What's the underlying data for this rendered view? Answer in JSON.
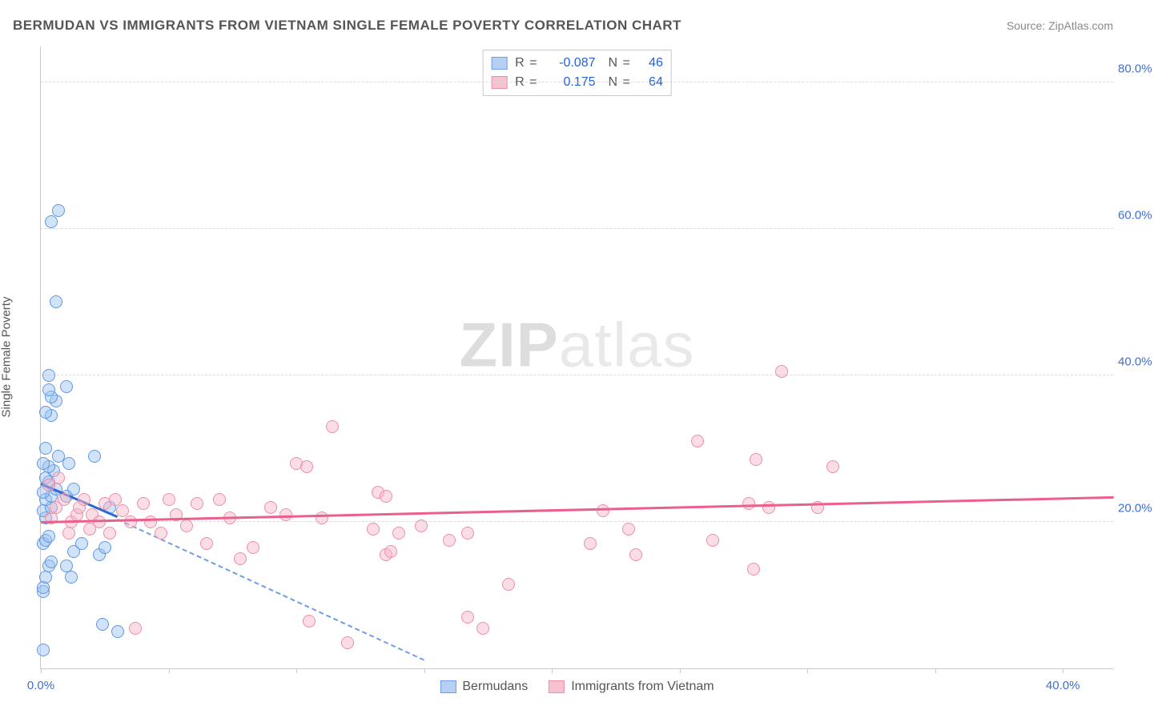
{
  "chart": {
    "type": "scatter",
    "title": "BERMUDAN VS IMMIGRANTS FROM VIETNAM SINGLE FEMALE POVERTY CORRELATION CHART",
    "source_label": "Source: ZipAtlas.com",
    "watermark_a": "ZIP",
    "watermark_b": "atlas",
    "yaxis_label": "Single Female Poverty",
    "background_color": "#ffffff",
    "grid_color": "#dcdcdc",
    "axis_color": "#c9c9c9",
    "tick_label_color": "#3b6fd8",
    "title_color": "#555555",
    "xlim": [
      0,
      42
    ],
    "ylim": [
      0,
      85
    ],
    "yticks": [
      20,
      40,
      60,
      80
    ],
    "ytick_labels": [
      "20.0%",
      "40.0%",
      "60.0%",
      "80.0%"
    ],
    "xticks": [
      0,
      5,
      10,
      15,
      20,
      25,
      30,
      35,
      40
    ],
    "xtick_labels": {
      "0": "0.0%",
      "40": "40.0%"
    },
    "marker_radius": 8,
    "marker_border_width": 1.4,
    "stats_legend": {
      "rows": [
        {
          "swatch_fill": "#b6cff2",
          "swatch_border": "#6b9fe8",
          "r_label": "R =",
          "r_value": "-0.087",
          "n_label": "N =",
          "n_value": "46"
        },
        {
          "swatch_fill": "#f7c2cf",
          "swatch_border": "#ec8fa8",
          "r_label": "R =",
          "r_value": "0.175",
          "n_label": "N =",
          "n_value": "64"
        }
      ]
    },
    "bottom_legend": {
      "items": [
        {
          "swatch_fill": "#b6cff2",
          "swatch_border": "#6b9fe8",
          "label": "Bermudans"
        },
        {
          "swatch_fill": "#f7c2cf",
          "swatch_border": "#ec8fa8",
          "label": "Immigrants from Vietnam"
        }
      ]
    },
    "series": [
      {
        "name": "Bermudans",
        "fill": "rgba(154,193,240,0.45)",
        "stroke": "#5f97e3",
        "trend_solid": {
          "x1": 0,
          "y1": 25,
          "x2": 3.0,
          "y2": 20.5,
          "color": "#2b67d6",
          "width": 3
        },
        "trend_dash": {
          "x1": 3.0,
          "y1": 20.2,
          "x2": 15.0,
          "y2": 1.0,
          "color": "#6e9ee6"
        },
        "points": [
          [
            0.1,
            2.5
          ],
          [
            0.1,
            10.5
          ],
          [
            0.1,
            11.0
          ],
          [
            0.2,
            12.5
          ],
          [
            0.3,
            14.0
          ],
          [
            0.4,
            14.5
          ],
          [
            0.1,
            17.0
          ],
          [
            0.2,
            17.5
          ],
          [
            0.3,
            18.0
          ],
          [
            0.2,
            20.5
          ],
          [
            0.1,
            21.5
          ],
          [
            0.4,
            22.0
          ],
          [
            0.2,
            23.0
          ],
          [
            0.4,
            23.5
          ],
          [
            0.1,
            24.0
          ],
          [
            0.6,
            24.5
          ],
          [
            0.3,
            25.5
          ],
          [
            0.2,
            26.0
          ],
          [
            0.5,
            27.0
          ],
          [
            0.3,
            27.5
          ],
          [
            0.1,
            28.0
          ],
          [
            0.7,
            29.0
          ],
          [
            0.2,
            30.0
          ],
          [
            0.4,
            34.5
          ],
          [
            0.2,
            35.0
          ],
          [
            0.6,
            36.5
          ],
          [
            0.4,
            37.0
          ],
          [
            0.3,
            38.0
          ],
          [
            1.0,
            38.5
          ],
          [
            0.3,
            40.0
          ],
          [
            0.6,
            50.0
          ],
          [
            0.4,
            61.0
          ],
          [
            0.7,
            62.5
          ],
          [
            1.0,
            14.0
          ],
          [
            1.2,
            12.5
          ],
          [
            1.3,
            16.0
          ],
          [
            1.6,
            17.0
          ],
          [
            2.3,
            15.5
          ],
          [
            2.5,
            16.5
          ],
          [
            1.0,
            23.5
          ],
          [
            1.3,
            24.5
          ],
          [
            1.1,
            28.0
          ],
          [
            2.1,
            29.0
          ],
          [
            2.7,
            22.0
          ],
          [
            2.4,
            6.0
          ],
          [
            3.0,
            5.0
          ]
        ]
      },
      {
        "name": "Immigrants from Vietnam",
        "fill": "rgba(246,180,197,0.45)",
        "stroke": "#ec8fa8",
        "trend_solid": {
          "x1": 0,
          "y1": 19.8,
          "x2": 42,
          "y2": 23.2,
          "color": "#ea5f8c",
          "width": 3
        },
        "points": [
          [
            0.4,
            20.5
          ],
          [
            0.6,
            22.0
          ],
          [
            0.9,
            23.0
          ],
          [
            0.3,
            25.0
          ],
          [
            0.7,
            26.0
          ],
          [
            1.1,
            18.5
          ],
          [
            1.2,
            20.0
          ],
          [
            1.4,
            21.0
          ],
          [
            1.5,
            22.0
          ],
          [
            1.7,
            23.0
          ],
          [
            1.9,
            19.0
          ],
          [
            2.0,
            21.0
          ],
          [
            2.3,
            20.0
          ],
          [
            2.5,
            22.5
          ],
          [
            2.7,
            18.5
          ],
          [
            2.9,
            23.0
          ],
          [
            3.2,
            21.5
          ],
          [
            3.5,
            20.0
          ],
          [
            3.7,
            5.5
          ],
          [
            4.0,
            22.5
          ],
          [
            4.3,
            20.0
          ],
          [
            4.7,
            18.5
          ],
          [
            5.0,
            23.0
          ],
          [
            5.3,
            21.0
          ],
          [
            5.7,
            19.5
          ],
          [
            6.1,
            22.5
          ],
          [
            6.5,
            17.0
          ],
          [
            7.0,
            23.0
          ],
          [
            7.4,
            20.5
          ],
          [
            7.8,
            15.0
          ],
          [
            8.3,
            16.5
          ],
          [
            9.0,
            22.0
          ],
          [
            9.6,
            21.0
          ],
          [
            10.0,
            28.0
          ],
          [
            10.4,
            27.5
          ],
          [
            10.5,
            6.5
          ],
          [
            11.0,
            20.5
          ],
          [
            11.4,
            33.0
          ],
          [
            12.0,
            3.5
          ],
          [
            13.0,
            19.0
          ],
          [
            13.2,
            24.0
          ],
          [
            13.5,
            23.5
          ],
          [
            13.5,
            15.5
          ],
          [
            13.7,
            16.0
          ],
          [
            14.0,
            18.5
          ],
          [
            14.9,
            19.5
          ],
          [
            16.0,
            17.5
          ],
          [
            16.7,
            18.5
          ],
          [
            16.7,
            7.0
          ],
          [
            17.3,
            5.5
          ],
          [
            18.3,
            11.5
          ],
          [
            21.5,
            17.0
          ],
          [
            22.0,
            21.5
          ],
          [
            23.0,
            19.0
          ],
          [
            23.3,
            15.5
          ],
          [
            25.7,
            31.0
          ],
          [
            26.3,
            17.5
          ],
          [
            27.7,
            22.5
          ],
          [
            27.9,
            13.5
          ],
          [
            28.0,
            28.5
          ],
          [
            28.5,
            22.0
          ],
          [
            29.0,
            40.5
          ],
          [
            30.4,
            22.0
          ],
          [
            31.0,
            27.5
          ]
        ]
      }
    ]
  }
}
